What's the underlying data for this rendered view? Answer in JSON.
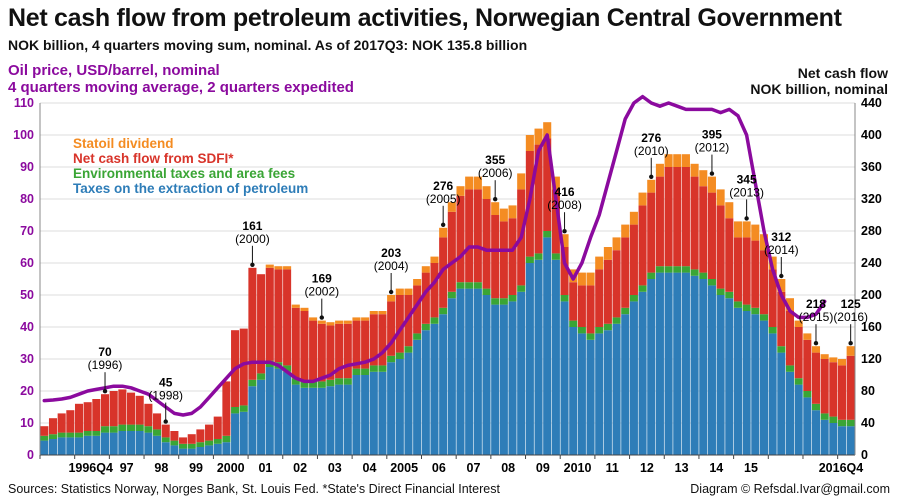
{
  "title": "Net cash flow from petroleum activities, Norwegian Central Government",
  "subtitle": "NOK billion, 4 quarters moving sum, nominal. As of 2017Q3: NOK 135.8 billion",
  "oil_axis_title_line1": "Oil price, USD/barrel, nominal",
  "oil_axis_title_line2": "4 quarters moving average, 2 quarters expedited",
  "right_axis_title_line1": "Net cash flow",
  "right_axis_title_line2": "NOK billion, nominal",
  "footer_source": "Sources: Statistics Norway, Norges Bank, St. Louis Fed. *State's Direct Financial Interest",
  "footer_credit": "Diagram © Refsdal.Ivar@gmail.com",
  "colors": {
    "taxes": "#2E7DB8",
    "env": "#3AA535",
    "sdfi": "#D8342A",
    "dividend": "#F48C22",
    "oil": "#8B0A9E",
    "gridline": "#dddddd"
  },
  "chart_data": {
    "type": "bar",
    "stacked": true,
    "quarter_start": "1995Q1",
    "x_tick_labels": [
      "1996Q4",
      "97",
      "98",
      "99",
      "2000",
      "01",
      "02",
      "03",
      "04",
      "2005",
      "06",
      "07",
      "08",
      "09",
      "2010",
      "11",
      "12",
      "13",
      "14",
      "15",
      "2016Q4"
    ],
    "y_left": {
      "min": 0,
      "max": 110,
      "ticks": [
        0,
        10,
        20,
        30,
        40,
        50,
        60,
        70,
        80,
        90,
        100,
        110
      ]
    },
    "y_right": {
      "min": 0,
      "max": 440,
      "ticks": [
        0,
        40,
        80,
        120,
        160,
        200,
        240,
        280,
        320,
        360,
        400,
        440
      ]
    },
    "grid": true,
    "legend_position": "top-left",
    "legend": [
      {
        "key": "dividend",
        "label": "Statoil dividend"
      },
      {
        "key": "sdfi",
        "label": "Net cash flow from SDFI*"
      },
      {
        "key": "env",
        "label": "Environmental taxes and area fees"
      },
      {
        "key": "taxes",
        "label": "Taxes on the extraction of petroleum"
      }
    ],
    "series": [
      {
        "key": "taxes",
        "name": "Taxes on the extraction of petroleum",
        "values": [
          4.5,
          5,
          5.5,
          5.5,
          5.5,
          6,
          6,
          7,
          7,
          7.5,
          7.5,
          7.5,
          7,
          6,
          4,
          3,
          2,
          2,
          2.5,
          3,
          3.5,
          4,
          13,
          13.5,
          21.5,
          23.5,
          27.5,
          27,
          26,
          22,
          21,
          21,
          21,
          21.5,
          22,
          22,
          25,
          25,
          26,
          26,
          29,
          30,
          32,
          36,
          39,
          41,
          44,
          49,
          52,
          52,
          52,
          50,
          47,
          47,
          48,
          51,
          60,
          61,
          68,
          61,
          48,
          40,
          38,
          36,
          38,
          39,
          41,
          44,
          48,
          51,
          55,
          57,
          57,
          57,
          57,
          56,
          55,
          53,
          50,
          49,
          46,
          45,
          44,
          42,
          38,
          32,
          26,
          22,
          18,
          14,
          11,
          10,
          9,
          9
        ]
      },
      {
        "key": "env",
        "name": "Environmental taxes and area fees",
        "values": [
          1.5,
          1.5,
          1.5,
          1.5,
          1.5,
          1.5,
          1.5,
          2,
          2,
          2,
          2,
          2,
          2,
          2,
          1.5,
          1.5,
          1.5,
          1.5,
          1.5,
          1.5,
          1.5,
          2,
          2,
          2,
          2,
          2,
          2,
          2,
          2,
          2,
          2,
          2,
          2,
          2,
          2,
          2,
          2,
          2,
          2,
          2,
          2,
          2,
          2,
          2,
          2,
          2,
          2,
          2,
          2,
          2,
          2,
          2,
          2,
          2,
          2,
          2,
          2,
          2,
          2,
          2,
          2,
          2,
          2,
          2,
          2,
          2,
          2,
          2,
          2,
          2,
          2,
          2,
          2,
          2,
          2,
          2,
          2,
          2,
          2,
          2,
          2,
          2,
          2,
          2,
          2,
          2,
          2,
          2,
          2,
          2,
          2,
          2,
          2,
          2,
          2
        ]
      },
      {
        "key": "sdfi",
        "name": "Net cash flow from SDFI*",
        "values": [
          3,
          5,
          6,
          7,
          9,
          9,
          10,
          10,
          11,
          11,
          10,
          9,
          7,
          5,
          4,
          3,
          2,
          3,
          4,
          5,
          7,
          17,
          24,
          24,
          35,
          31,
          29,
          29,
          30,
          22,
          22,
          19,
          18,
          17,
          17,
          17,
          15,
          15,
          16,
          16,
          17,
          18,
          16,
          15,
          16,
          17,
          22,
          25,
          27,
          29,
          29,
          28,
          26,
          24,
          24,
          30,
          33,
          34,
          29,
          20,
          15,
          12,
          13,
          15,
          18,
          20,
          21,
          22,
          22,
          25,
          25,
          28,
          31,
          31,
          31,
          29,
          27,
          27,
          26,
          23,
          20,
          21,
          21,
          20,
          18,
          17,
          17,
          16,
          16,
          16,
          17,
          17,
          17,
          20
        ]
      },
      {
        "key": "dividend",
        "name": "Statoil dividend",
        "values": [
          0,
          0,
          0,
          0,
          0,
          0,
          0,
          0,
          0,
          0,
          0,
          0,
          0,
          0,
          0,
          0,
          0,
          0,
          0,
          0,
          0,
          0,
          0,
          0,
          0,
          0,
          1,
          1,
          1,
          1,
          1,
          1,
          1,
          1,
          1,
          1,
          1,
          1,
          1,
          1,
          2,
          2,
          2,
          2,
          2,
          2,
          3,
          3,
          3,
          4,
          4,
          4,
          4,
          4,
          4,
          5,
          5,
          5,
          5,
          4,
          4,
          4,
          4,
          4,
          4,
          4,
          4,
          4,
          4,
          4,
          4,
          4,
          4,
          4,
          4,
          4,
          5,
          5,
          5,
          5,
          5,
          5,
          5,
          5,
          4,
          4,
          4,
          2,
          2,
          2,
          1.5,
          1.5,
          2,
          3
        ]
      }
    ],
    "oil_price": {
      "name": "Oil price, USD/barrel, nominal",
      "axis": "left",
      "values": [
        17,
        17.2,
        17.5,
        18,
        19,
        20,
        20.5,
        21,
        21.5,
        21.5,
        21,
        20,
        19,
        17,
        15,
        13,
        12.5,
        13,
        15,
        18,
        21,
        24,
        27,
        28.5,
        29,
        29,
        29,
        28,
        26,
        24,
        23,
        23,
        24,
        25,
        27,
        28,
        28.5,
        29,
        30,
        32,
        35,
        39,
        43,
        47,
        51,
        54,
        58,
        60,
        62,
        65,
        65,
        64,
        64,
        64,
        64,
        68,
        80,
        95,
        100,
        80,
        60,
        55,
        60,
        68,
        75,
        85,
        95,
        105,
        110,
        112,
        110,
        109,
        110,
        109,
        108,
        108,
        108,
        108,
        107,
        108,
        106,
        100,
        85,
        70,
        58,
        50,
        45,
        43,
        43,
        44,
        48
      ]
    },
    "annotations": [
      {
        "value": "70",
        "year": "(1996)",
        "quarter_index": 7
      },
      {
        "value": "45",
        "year": "(1998)",
        "quarter_index": 14
      },
      {
        "value": "161",
        "year": "(2000)",
        "quarter_index": 24
      },
      {
        "value": "169",
        "year": "(2002)",
        "quarter_index": 32
      },
      {
        "value": "203",
        "year": "(2004)",
        "quarter_index": 40
      },
      {
        "value": "276",
        "year": "(2005)",
        "quarter_index": 46
      },
      {
        "value": "355",
        "year": "(2006)",
        "quarter_index": 52
      },
      {
        "value": "416",
        "year": "(2008)",
        "quarter_index": 60
      },
      {
        "value": "276",
        "year": "(2010)",
        "quarter_index": 70
      },
      {
        "value": "395",
        "year": "(2012)",
        "quarter_index": 77
      },
      {
        "value": "345",
        "year": "(2013)",
        "quarter_index": 81
      },
      {
        "value": "312",
        "year": "(2014)",
        "quarter_index": 85
      },
      {
        "value": "218",
        "year": "(2015)",
        "quarter_index": 89
      },
      {
        "value": "125",
        "year": "(2016)",
        "quarter_index": 93
      }
    ]
  }
}
